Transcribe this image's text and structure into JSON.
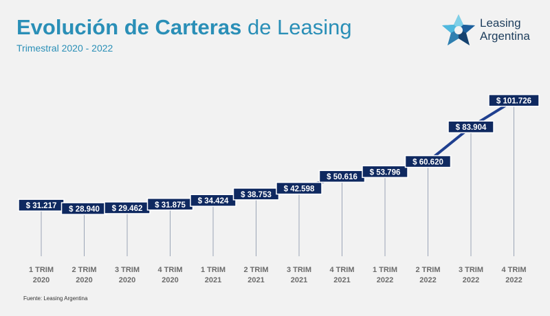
{
  "header": {
    "title_bold": "Evolución de Carteras",
    "title_rest": " de Leasing",
    "subtitle": "Trimestral 2020 - 2022"
  },
  "logo": {
    "line1": "Leasing",
    "line2": "Argentina",
    "icon": "star-logo-icon"
  },
  "footer": {
    "source": "Fuente: Leasing Argentina"
  },
  "colors": {
    "title": "#2a8fb7",
    "line": "#1f3f8f",
    "label_bg": "#0f2960",
    "label_text": "#ffffff",
    "axis_text": "#6b6b6b"
  },
  "chart_data": {
    "type": "line",
    "title": "Evolución de Carteras de Leasing",
    "subtitle": "Trimestral 2020 - 2022",
    "categories": [
      [
        "1 TRIM",
        "2020"
      ],
      [
        "2 TRIM",
        "2020"
      ],
      [
        "3 TRIM",
        "2020"
      ],
      [
        "4 TRIM",
        "2020"
      ],
      [
        "1 TRIM",
        "2021"
      ],
      [
        "2 TRIM",
        "2021"
      ],
      [
        "3 TRIM",
        "2021"
      ],
      [
        "4 TRIM",
        "2021"
      ],
      [
        "1 TRIM",
        "2022"
      ],
      [
        "2 TRIM",
        "2022"
      ],
      [
        "3 TRIM",
        "2022"
      ],
      [
        "4 TRIM",
        "2022"
      ]
    ],
    "values": [
      31217,
      28940,
      29462,
      31875,
      34424,
      38753,
      42598,
      50616,
      53796,
      60620,
      83904,
      101726
    ],
    "data_labels": [
      "$ 31.217",
      "$ 28.940",
      "$ 29.462",
      "$ 31.875",
      "$ 34.424",
      "$ 38.753",
      "$ 42.598",
      "$ 50.616",
      "$ 53.796",
      "$ 60.620",
      "$ 83.904",
      "$ 101.726"
    ],
    "ylim": [
      0,
      110000
    ],
    "grid": false,
    "legend": "none",
    "xlabel": "",
    "ylabel": ""
  }
}
